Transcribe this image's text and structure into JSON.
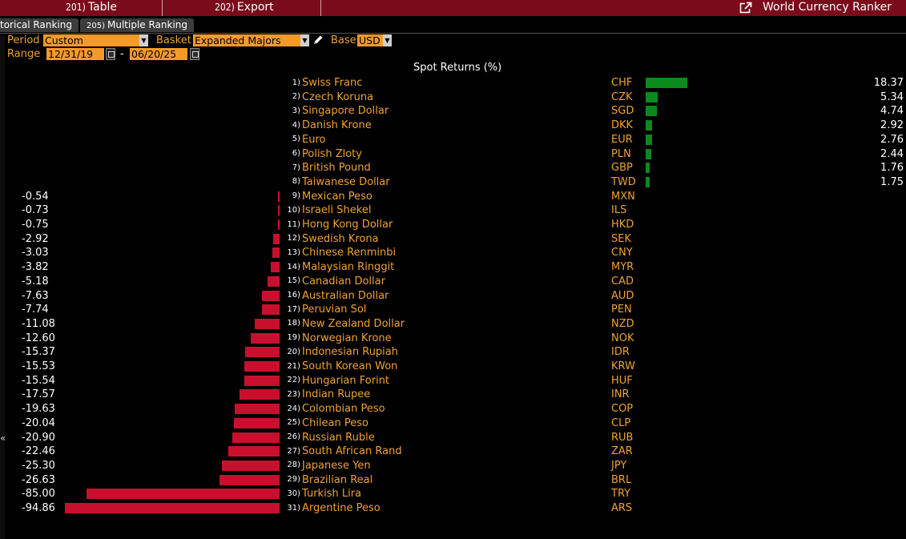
{
  "menubar": {
    "items": [
      {
        "num": "201)",
        "label": "Table"
      },
      {
        "num": "202)",
        "label": "Export"
      }
    ],
    "app_title": "World Currency Ranker",
    "app_icon": "launch-icon"
  },
  "tabs": [
    {
      "num": "",
      "label": "torical Ranking"
    },
    {
      "num": "205)",
      "label": "Multiple Ranking"
    }
  ],
  "controls": {
    "period_label": "Period",
    "period_value": "Custom",
    "basket_label": "Basket",
    "basket_value": "Expanded Majors",
    "base_label": "Base",
    "base_value": "USD",
    "range_label": "Range",
    "range_start": "12/31/19",
    "range_sep": "-",
    "range_end": "06/20/25",
    "edit_icon": "pencil-icon"
  },
  "gutter_arrow": "«",
  "chart_data": {
    "type": "bar",
    "title": "Spot Returns (%)",
    "colors": {
      "positive": "#0b8a1c",
      "negative": "#c8102e"
    },
    "rows": [
      {
        "rank": "1)",
        "name": "Swiss Franc",
        "code": "CHF",
        "value": 18.37,
        "label": "18.37"
      },
      {
        "rank": "2)",
        "name": "Czech Koruna",
        "code": "CZK",
        "value": 5.34,
        "label": "5.34"
      },
      {
        "rank": "3)",
        "name": "Singapore Dollar",
        "code": "SGD",
        "value": 4.74,
        "label": "4.74"
      },
      {
        "rank": "4)",
        "name": "Danish Krone",
        "code": "DKK",
        "value": 2.92,
        "label": "2.92"
      },
      {
        "rank": "5)",
        "name": "Euro",
        "code": "EUR",
        "value": 2.76,
        "label": "2.76"
      },
      {
        "rank": "6)",
        "name": "Polish Zloty",
        "code": "PLN",
        "value": 2.44,
        "label": "2.44"
      },
      {
        "rank": "7)",
        "name": "British Pound",
        "code": "GBP",
        "value": 1.76,
        "label": "1.76"
      },
      {
        "rank": "8)",
        "name": "Taiwanese Dollar",
        "code": "TWD",
        "value": 1.75,
        "label": "1.75"
      },
      {
        "rank": "9)",
        "name": "Mexican Peso",
        "code": "MXN",
        "value": -0.54,
        "label": "-0.54"
      },
      {
        "rank": "10)",
        "name": "Israeli Shekel",
        "code": "ILS",
        "value": -0.73,
        "label": "-0.73"
      },
      {
        "rank": "11)",
        "name": "Hong Kong Dollar",
        "code": "HKD",
        "value": -0.75,
        "label": "-0.75"
      },
      {
        "rank": "12)",
        "name": "Swedish Krona",
        "code": "SEK",
        "value": -2.92,
        "label": "-2.92"
      },
      {
        "rank": "13)",
        "name": "Chinese Renminbi",
        "code": "CNY",
        "value": -3.03,
        "label": "-3.03"
      },
      {
        "rank": "14)",
        "name": "Malaysian Ringgit",
        "code": "MYR",
        "value": -3.82,
        "label": "-3.82"
      },
      {
        "rank": "15)",
        "name": "Canadian Dollar",
        "code": "CAD",
        "value": -5.18,
        "label": "-5.18"
      },
      {
        "rank": "16)",
        "name": "Australian Dollar",
        "code": "AUD",
        "value": -7.63,
        "label": "-7.63"
      },
      {
        "rank": "17)",
        "name": "Peruvian Sol",
        "code": "PEN",
        "value": -7.74,
        "label": "-7.74"
      },
      {
        "rank": "18)",
        "name": "New Zealand Dollar",
        "code": "NZD",
        "value": -11.08,
        "label": "-11.08"
      },
      {
        "rank": "19)",
        "name": "Norwegian Krone",
        "code": "NOK",
        "value": -12.6,
        "label": "-12.60"
      },
      {
        "rank": "20)",
        "name": "Indonesian Rupiah",
        "code": "IDR",
        "value": -15.37,
        "label": "-15.37"
      },
      {
        "rank": "21)",
        "name": "South Korean Won",
        "code": "KRW",
        "value": -15.53,
        "label": "-15.53"
      },
      {
        "rank": "22)",
        "name": "Hungarian Forint",
        "code": "HUF",
        "value": -15.54,
        "label": "-15.54"
      },
      {
        "rank": "23)",
        "name": "Indian Rupee",
        "code": "INR",
        "value": -17.57,
        "label": "-17.57"
      },
      {
        "rank": "24)",
        "name": "Colombian Peso",
        "code": "COP",
        "value": -19.63,
        "label": "-19.63"
      },
      {
        "rank": "25)",
        "name": "Chilean Peso",
        "code": "CLP",
        "value": -20.04,
        "label": "-20.04"
      },
      {
        "rank": "26)",
        "name": "Russian Ruble",
        "code": "RUB",
        "value": -20.9,
        "label": "-20.90"
      },
      {
        "rank": "27)",
        "name": "South African Rand",
        "code": "ZAR",
        "value": -22.46,
        "label": "-22.46"
      },
      {
        "rank": "28)",
        "name": "Japanese Yen",
        "code": "JPY",
        "value": -25.3,
        "label": "-25.30"
      },
      {
        "rank": "29)",
        "name": "Brazilian Real",
        "code": "BRL",
        "value": -26.63,
        "label": "-26.63"
      },
      {
        "rank": "30)",
        "name": "Turkish Lira",
        "code": "TRY",
        "value": -85.0,
        "label": "-85.00"
      },
      {
        "rank": "31)",
        "name": "Argentine Peso",
        "code": "ARS",
        "value": -94.86,
        "label": "-94.86"
      }
    ]
  }
}
